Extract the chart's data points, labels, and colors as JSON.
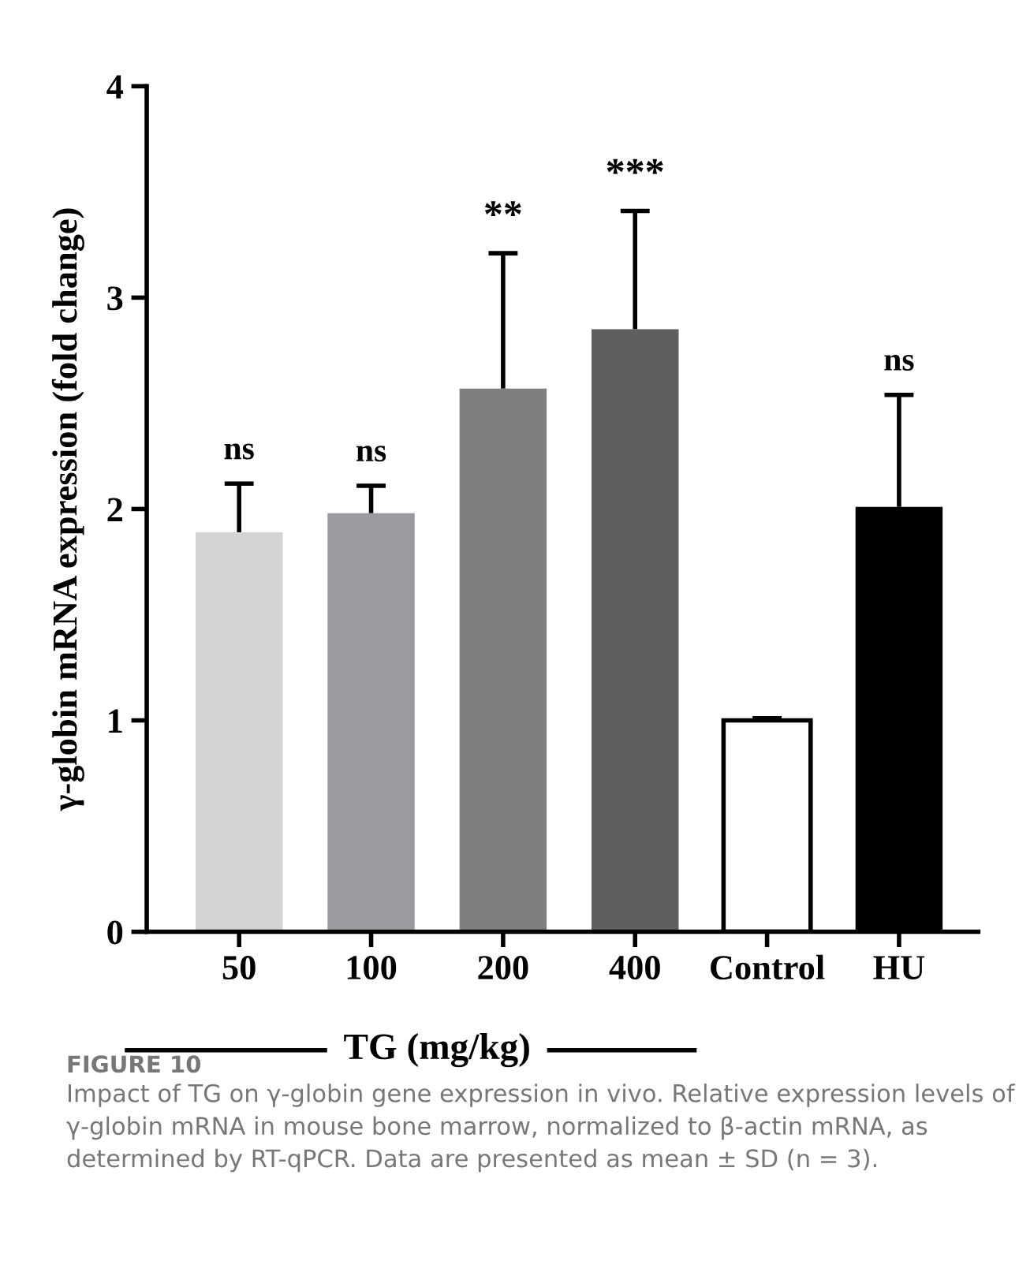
{
  "chart_data": {
    "type": "bar",
    "ylabel": "γ-globin mRNA expression (fold change)",
    "xlabel": "TG (mg/kg)",
    "categories": [
      "50",
      "100",
      "200",
      "400",
      "Control",
      "HU"
    ],
    "values": [
      1.89,
      1.98,
      2.57,
      2.85,
      1.0,
      2.01
    ],
    "errors": [
      [
        1.89,
        2.12
      ],
      [
        1.98,
        2.11
      ],
      [
        2.57,
        3.21
      ],
      [
        2.85,
        3.41
      ],
      [
        1.0,
        1.01
      ],
      [
        2.01,
        2.54
      ]
    ],
    "colors": [
      "#d3d3d3",
      "#9b9a9f",
      "#7f7f7f",
      "#5f5f5f",
      "#ffffff",
      "#000000"
    ],
    "ylim": [
      0,
      4
    ],
    "yticks": [
      0,
      1,
      2,
      3,
      4
    ],
    "grid": false,
    "legend": false,
    "annotations": [
      {
        "text": "ns",
        "x": "50",
        "y": 2.12
      },
      {
        "text": "ns",
        "x": "100",
        "y": 2.11
      },
      {
        "text": "**",
        "x": "200",
        "y": 3.21
      },
      {
        "text": "***",
        "x": "400",
        "y": 3.41
      },
      {
        "text": "ns",
        "x": "HU",
        "y": 2.54
      },
      "FIGURE 10",
      "Impact of TG on γ-globin gene expression in vivo. Relative expression levels of γ-globin mRNA in mouse bone marrow, normalized to β-actin mRNA, as determined by RT-qPCR. Data are presented as mean ± SD (n = 3)."
    ]
  }
}
